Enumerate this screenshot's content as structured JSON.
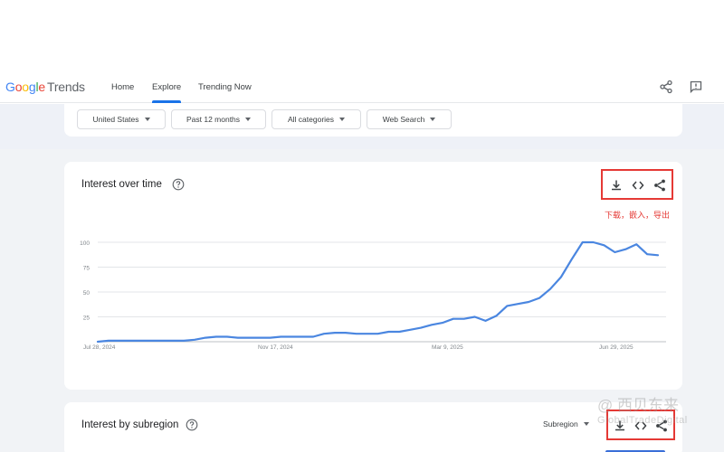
{
  "header": {
    "logo_google": [
      "G",
      "o",
      "o",
      "g",
      "l",
      "e"
    ],
    "logo_trends": "Trends",
    "nav": [
      {
        "label": "Home",
        "active": false
      },
      {
        "label": "Explore",
        "active": true
      },
      {
        "label": "Trending Now",
        "active": false
      }
    ],
    "icons": [
      "share-icon",
      "feedback-icon"
    ],
    "accent_color": "#1a73e8"
  },
  "filters": {
    "country": "United States",
    "time_range": "Past 12 months",
    "category": "All categories",
    "search_type": "Web Search"
  },
  "interest_over_time": {
    "title": "Interest over time",
    "actions": [
      "download-icon",
      "embed-icon",
      "share-icon"
    ],
    "annotation": "下载，嵌入，导出",
    "annotation_color": "#e53935"
  },
  "chart_data": {
    "type": "line",
    "title": "",
    "xlabel": "",
    "ylabel": "",
    "ylim": [
      0,
      100
    ],
    "yticks": [
      25,
      50,
      75,
      100
    ],
    "xticks": [
      "Jul 28, 2024",
      "Nov 17, 2024",
      "Mar 9, 2025",
      "Jun 29, 2025"
    ],
    "grid": true,
    "line_color": "#4a86e0",
    "series": [
      {
        "values": [
          0,
          1,
          1,
          1,
          1,
          1,
          1,
          1,
          1,
          2,
          4,
          5,
          5,
          4,
          4,
          4,
          4,
          5,
          5,
          5,
          5,
          8,
          9,
          9,
          8,
          8,
          8,
          10,
          10,
          12,
          14,
          17,
          19,
          23,
          23,
          25,
          21,
          26,
          36,
          38,
          40,
          44,
          53,
          65,
          83,
          100,
          100,
          97,
          90,
          93,
          98,
          88,
          87
        ]
      }
    ]
  },
  "interest_by_subregion": {
    "title": "Interest by subregion",
    "select_value": "Subregion",
    "actions": [
      "download-icon",
      "embed-icon",
      "share-icon"
    ]
  },
  "watermark": {
    "line1": "@ 西贝东来",
    "line2": "GlobalTradeDigital"
  }
}
